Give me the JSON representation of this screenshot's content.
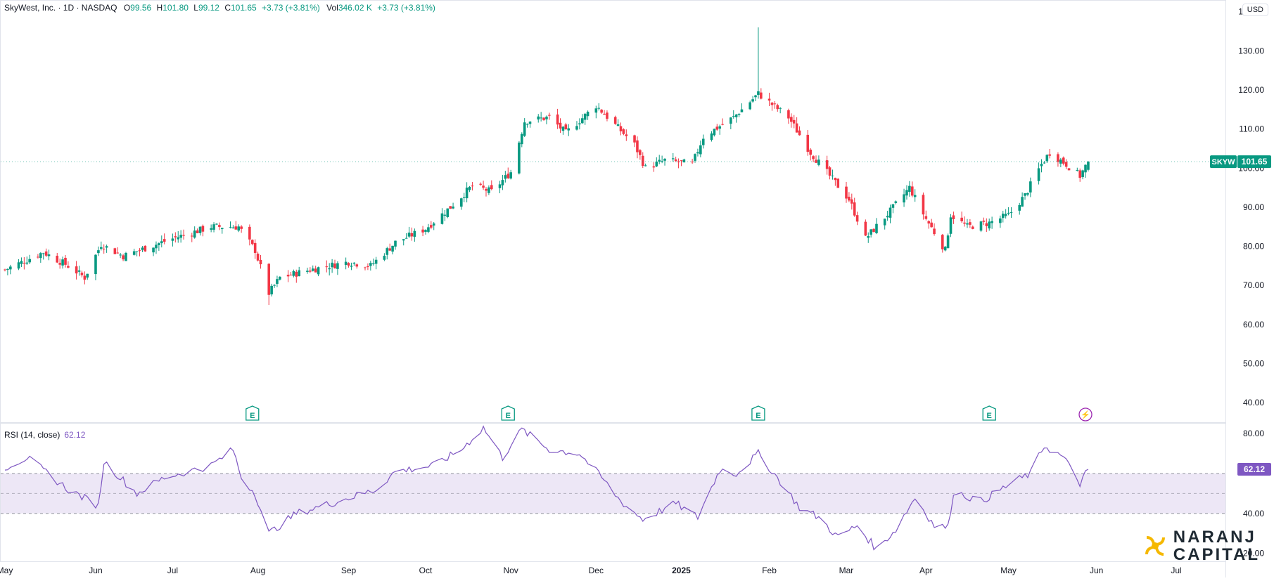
{
  "header": {
    "symbol_title": "SkyWest, Inc. · 1D · NASDAQ",
    "open_label": "O",
    "open": "99.56",
    "high_label": "H",
    "high": "101.80",
    "low_label": "L",
    "low": "99.12",
    "close_label": "C",
    "close": "101.65",
    "change": "+3.73 (+3.81%)",
    "vol_label": "Vol",
    "vol": "346.02 K",
    "vol_change": "+3.73 (+3.81%)"
  },
  "currency_button": "USD",
  "price_badge": {
    "ticker": "SKYW",
    "price": "101.65"
  },
  "rsi": {
    "label": "RSI (14, close)",
    "value": "62.12",
    "badge": "62.12"
  },
  "logo": {
    "line1": "NARANJ",
    "line2": "CAPITAL"
  },
  "colors": {
    "up": "#089981",
    "down": "#f23645",
    "rsi": "#7e57c2",
    "rsi_band": "#ede7f6",
    "earnings": "#089981",
    "event": "#9c27b0"
  },
  "chart_data": [
    {
      "type": "candlestick",
      "title": "SkyWest, Inc. · 1D · NASDAQ",
      "y_axis_ticks": [
        "40.00",
        "50.00",
        "60.00",
        "70.00",
        "80.00",
        "90.00",
        "100.00",
        "110.00",
        "120.00",
        "130.00",
        "140.00"
      ],
      "ylim": [
        35,
        143
      ],
      "x_axis_labels": [
        "May",
        "Jun",
        "Jul",
        "Aug",
        "Sep",
        "Oct",
        "Nov",
        "Dec",
        "2025",
        "Feb",
        "Mar",
        "Apr",
        "May",
        "Jun",
        "Jul"
      ],
      "x_label_dates": [
        "2024-05-01",
        "2024-06-03",
        "2024-07-01",
        "2024-08-01",
        "2024-09-03",
        "2024-10-01",
        "2024-11-01",
        "2024-12-02",
        "2025-01-02",
        "2025-02-03",
        "2025-03-03",
        "2025-04-01",
        "2025-05-01",
        "2025-06-02",
        "2025-07-01"
      ],
      "last_price": 101.65,
      "ohlc_keypoints": [
        {
          "date": "2024-05-01",
          "close": 74
        },
        {
          "date": "2024-05-15",
          "close": 78.5
        },
        {
          "date": "2024-05-24",
          "close": 75
        },
        {
          "date": "2024-05-30",
          "close": 72
        },
        {
          "date": "2024-06-05",
          "close": 80.5
        },
        {
          "date": "2024-06-13",
          "close": 77.5
        },
        {
          "date": "2024-06-21",
          "close": 79.5
        },
        {
          "date": "2024-07-01",
          "close": 82
        },
        {
          "date": "2024-07-15",
          "close": 85
        },
        {
          "date": "2024-07-25",
          "close": 85
        },
        {
          "date": "2024-07-31",
          "close": 79
        },
        {
          "date": "2024-08-05",
          "close": 68
        },
        {
          "date": "2024-08-09",
          "close": 72
        },
        {
          "date": "2024-08-20",
          "close": 74
        },
        {
          "date": "2024-09-03",
          "close": 76
        },
        {
          "date": "2024-09-11",
          "close": 75
        },
        {
          "date": "2024-09-20",
          "close": 81
        },
        {
          "date": "2024-10-01",
          "close": 84.5
        },
        {
          "date": "2024-10-10",
          "close": 90
        },
        {
          "date": "2024-10-18",
          "close": 95.5
        },
        {
          "date": "2024-10-25",
          "close": 94
        },
        {
          "date": "2024-11-01",
          "close": 99
        },
        {
          "date": "2024-11-06",
          "close": 112
        },
        {
          "date": "2024-11-15",
          "close": 113
        },
        {
          "date": "2024-11-21",
          "close": 109
        },
        {
          "date": "2024-12-02",
          "close": 116
        },
        {
          "date": "2024-12-09",
          "close": 111
        },
        {
          "date": "2024-12-16",
          "close": 106
        },
        {
          "date": "2024-12-20",
          "close": 100
        },
        {
          "date": "2024-12-27",
          "close": 102
        },
        {
          "date": "2025-01-06",
          "close": 101
        },
        {
          "date": "2025-01-10",
          "close": 108
        },
        {
          "date": "2025-01-21",
          "close": 113
        },
        {
          "date": "2025-01-30",
          "close": 119
        },
        {
          "date": "2025-02-10",
          "close": 113
        },
        {
          "date": "2025-02-18",
          "close": 104
        },
        {
          "date": "2025-02-25",
          "close": 98
        },
        {
          "date": "2025-03-04",
          "close": 92
        },
        {
          "date": "2025-03-10",
          "close": 82
        },
        {
          "date": "2025-03-19",
          "close": 89
        },
        {
          "date": "2025-03-26",
          "close": 95
        },
        {
          "date": "2025-04-01",
          "close": 87
        },
        {
          "date": "2025-04-08",
          "close": 79
        },
        {
          "date": "2025-04-10",
          "close": 88
        },
        {
          "date": "2025-04-16",
          "close": 85
        },
        {
          "date": "2025-04-24",
          "close": 86
        },
        {
          "date": "2025-05-01",
          "close": 88
        },
        {
          "date": "2025-05-07",
          "close": 93
        },
        {
          "date": "2025-05-13",
          "close": 101
        },
        {
          "date": "2025-05-16",
          "close": 104
        },
        {
          "date": "2025-05-22",
          "close": 101
        },
        {
          "date": "2025-05-27",
          "close": 98
        },
        {
          "date": "2025-05-30",
          "close": 101.65
        }
      ],
      "notable_highs_lows": [
        {
          "date": "2025-01-30",
          "high": 136
        },
        {
          "date": "2024-08-05",
          "low": 65
        }
      ],
      "event_markers": [
        {
          "date": "2024-07-30",
          "label": "E"
        },
        {
          "date": "2024-10-31",
          "label": "E"
        },
        {
          "date": "2025-01-30",
          "label": "E"
        },
        {
          "date": "2025-04-24",
          "label": "E"
        },
        {
          "date": "2025-05-29",
          "label": "⚡"
        }
      ]
    },
    {
      "type": "line",
      "title": "RSI (14, close)",
      "y_axis_ticks": [
        "20.00",
        "40.00",
        "80.00"
      ],
      "ylim": [
        16,
        85
      ],
      "bands": {
        "upper": 60,
        "middle": 50,
        "lower": 40
      },
      "last_value": 62.12,
      "keypoints": [
        {
          "date": "2024-05-01",
          "y": 63
        },
        {
          "date": "2024-05-09",
          "y": 68
        },
        {
          "date": "2024-05-24",
          "y": 52
        },
        {
          "date": "2024-06-04",
          "y": 44
        },
        {
          "date": "2024-06-06",
          "y": 66
        },
        {
          "date": "2024-06-18",
          "y": 50
        },
        {
          "date": "2024-06-28",
          "y": 58
        },
        {
          "date": "2024-07-15",
          "y": 64
        },
        {
          "date": "2024-07-23",
          "y": 72
        },
        {
          "date": "2024-07-26",
          "y": 58
        },
        {
          "date": "2024-07-31",
          "y": 50
        },
        {
          "date": "2024-08-05",
          "y": 30
        },
        {
          "date": "2024-08-15",
          "y": 40
        },
        {
          "date": "2024-08-30",
          "y": 46
        },
        {
          "date": "2024-09-13",
          "y": 52
        },
        {
          "date": "2024-09-20",
          "y": 61
        },
        {
          "date": "2024-10-04",
          "y": 64
        },
        {
          "date": "2024-10-14",
          "y": 72
        },
        {
          "date": "2024-10-22",
          "y": 83
        },
        {
          "date": "2024-10-29",
          "y": 68
        },
        {
          "date": "2024-11-05",
          "y": 82
        },
        {
          "date": "2024-11-15",
          "y": 72
        },
        {
          "date": "2024-11-26",
          "y": 70
        },
        {
          "date": "2024-12-04",
          "y": 58
        },
        {
          "date": "2024-12-11",
          "y": 46
        },
        {
          "date": "2024-12-19",
          "y": 37
        },
        {
          "date": "2024-12-31",
          "y": 45
        },
        {
          "date": "2025-01-08",
          "y": 38
        },
        {
          "date": "2025-01-16",
          "y": 62
        },
        {
          "date": "2025-01-22",
          "y": 60
        },
        {
          "date": "2025-01-30",
          "y": 70
        },
        {
          "date": "2025-02-07",
          "y": 56
        },
        {
          "date": "2025-02-14",
          "y": 43
        },
        {
          "date": "2025-02-21",
          "y": 38
        },
        {
          "date": "2025-02-28",
          "y": 28
        },
        {
          "date": "2025-03-07",
          "y": 34
        },
        {
          "date": "2025-03-14",
          "y": 22
        },
        {
          "date": "2025-03-21",
          "y": 32
        },
        {
          "date": "2025-03-28",
          "y": 48
        },
        {
          "date": "2025-04-04",
          "y": 34
        },
        {
          "date": "2025-04-09",
          "y": 33
        },
        {
          "date": "2025-04-11",
          "y": 51
        },
        {
          "date": "2025-04-21",
          "y": 46
        },
        {
          "date": "2025-05-02",
          "y": 55
        },
        {
          "date": "2025-05-09",
          "y": 60
        },
        {
          "date": "2025-05-14",
          "y": 74
        },
        {
          "date": "2025-05-21",
          "y": 68
        },
        {
          "date": "2025-05-27",
          "y": 55
        },
        {
          "date": "2025-05-30",
          "y": 62.12
        }
      ]
    }
  ]
}
